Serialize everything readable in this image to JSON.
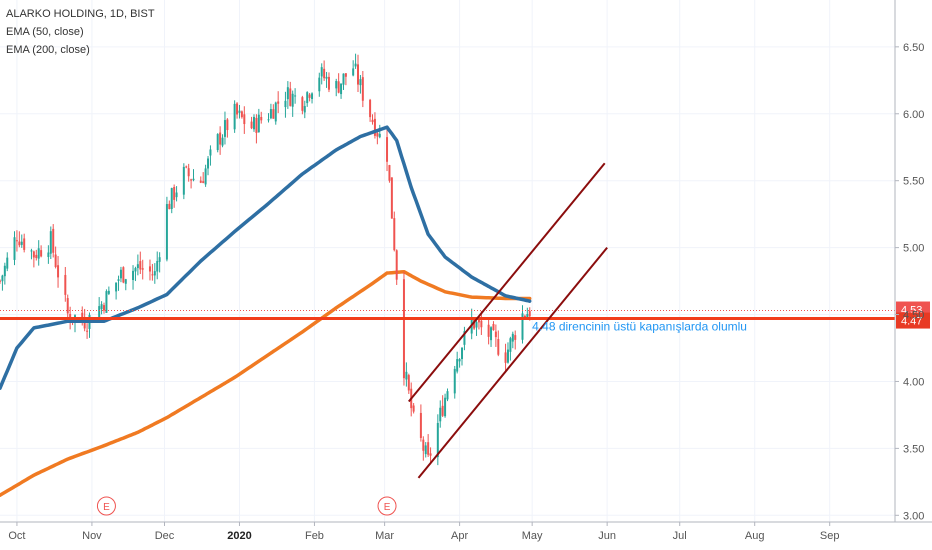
{
  "legend": {
    "title": "ALARKO HOLDING, 1D, BIST",
    "ema50": "EMA (50, close)",
    "ema200": "EMA (200, close)"
  },
  "colors": {
    "up": "#26a69a",
    "down": "#ef5350",
    "ema50": "#2e6fa3",
    "ema200": "#f07a22",
    "channel": "#8b0d0d",
    "resistance": "#f23c1a",
    "annotation": "#2196f3",
    "price_tag_upper": "#ef5350",
    "price_tag_lower": "#e83a23"
  },
  "chart_data": {
    "type": "candlestick",
    "symbol": "ALARKO HOLDING",
    "interval": "1D",
    "exchange": "BIST",
    "ylim": [
      2.95,
      6.85
    ],
    "y_ticks": [
      3.0,
      3.5,
      4.0,
      4.5,
      5.0,
      5.5,
      6.0,
      6.5
    ],
    "y_tick_labels": [
      "3.00",
      "3.50",
      "4.00",
      "4.50",
      "5.00",
      "5.50",
      "6.00",
      "6.50"
    ],
    "x_labels": [
      {
        "label": "Oct",
        "date": "2019-10-01",
        "bold": false
      },
      {
        "label": "Nov",
        "date": "2019-11-01",
        "bold": false
      },
      {
        "label": "Dec",
        "date": "2019-12-01",
        "bold": false
      },
      {
        "label": "2020",
        "date": "2020-01-01",
        "bold": true
      },
      {
        "label": "Feb",
        "date": "2020-02-01",
        "bold": false
      },
      {
        "label": "Mar",
        "date": "2020-03-01",
        "bold": false
      },
      {
        "label": "Apr",
        "date": "2020-04-01",
        "bold": false
      },
      {
        "label": "May",
        "date": "2020-05-01",
        "bold": false
      },
      {
        "label": "Jun",
        "date": "2020-06-01",
        "bold": false
      },
      {
        "label": "Jul",
        "date": "2020-07-01",
        "bold": false
      },
      {
        "label": "Aug",
        "date": "2020-08-01",
        "bold": false
      },
      {
        "label": "Sep",
        "date": "2020-09-01",
        "bold": false
      }
    ],
    "x_range": [
      "2019-09-24",
      "2020-09-28"
    ],
    "close_keypoints": [
      [
        "2019-09-24",
        4.75
      ],
      [
        "2019-10-01",
        5.1
      ],
      [
        "2019-10-08",
        4.95
      ],
      [
        "2019-10-15",
        5.05
      ],
      [
        "2019-10-22",
        4.5
      ],
      [
        "2019-10-30",
        4.45
      ],
      [
        "2019-11-06",
        4.6
      ],
      [
        "2019-11-13",
        4.8
      ],
      [
        "2019-11-20",
        4.85
      ],
      [
        "2019-11-27",
        4.8
      ],
      [
        "2019-12-02",
        5.3
      ],
      [
        "2019-12-09",
        5.55
      ],
      [
        "2019-12-16",
        5.5
      ],
      [
        "2019-12-23",
        5.8
      ],
      [
        "2019-12-30",
        6.0
      ],
      [
        "2020-01-06",
        5.9
      ],
      [
        "2020-01-13",
        6.0
      ],
      [
        "2020-01-20",
        6.15
      ],
      [
        "2020-01-27",
        6.1
      ],
      [
        "2020-02-03",
        6.3
      ],
      [
        "2020-02-10",
        6.2
      ],
      [
        "2020-02-17",
        6.35
      ],
      [
        "2020-02-24",
        6.0
      ],
      [
        "2020-03-02",
        5.7
      ],
      [
        "2020-03-06",
        4.8
      ],
      [
        "2020-03-09",
        4.1
      ],
      [
        "2020-03-13",
        3.7
      ],
      [
        "2020-03-19",
        3.4
      ],
      [
        "2020-03-24",
        3.75
      ],
      [
        "2020-03-30",
        4.15
      ],
      [
        "2020-04-06",
        4.45
      ],
      [
        "2020-04-13",
        4.35
      ],
      [
        "2020-04-20",
        4.2
      ],
      [
        "2020-04-27",
        4.5
      ],
      [
        "2020-04-30",
        4.53
      ]
    ],
    "series": [
      {
        "name": "EMA (50, close)",
        "points": [
          [
            "2019-09-24",
            3.95
          ],
          [
            "2019-10-01",
            4.25
          ],
          [
            "2019-10-08",
            4.4
          ],
          [
            "2019-10-22",
            4.45
          ],
          [
            "2019-11-06",
            4.45
          ],
          [
            "2019-11-20",
            4.55
          ],
          [
            "2019-12-02",
            4.65
          ],
          [
            "2019-12-16",
            4.9
          ],
          [
            "2019-12-30",
            5.12
          ],
          [
            "2020-01-13",
            5.33
          ],
          [
            "2020-01-27",
            5.55
          ],
          [
            "2020-02-10",
            5.73
          ],
          [
            "2020-02-20",
            5.83
          ],
          [
            "2020-03-02",
            5.9
          ],
          [
            "2020-03-06",
            5.8
          ],
          [
            "2020-03-12",
            5.45
          ],
          [
            "2020-03-19",
            5.1
          ],
          [
            "2020-03-26",
            4.93
          ],
          [
            "2020-04-06",
            4.78
          ],
          [
            "2020-04-20",
            4.64
          ],
          [
            "2020-04-30",
            4.6
          ]
        ]
      },
      {
        "name": "EMA (200, close)",
        "points": [
          [
            "2019-09-24",
            3.15
          ],
          [
            "2019-10-08",
            3.3
          ],
          [
            "2019-10-22",
            3.42
          ],
          [
            "2019-11-06",
            3.52
          ],
          [
            "2019-11-20",
            3.62
          ],
          [
            "2019-12-02",
            3.73
          ],
          [
            "2019-12-16",
            3.88
          ],
          [
            "2019-12-30",
            4.03
          ],
          [
            "2020-01-13",
            4.2
          ],
          [
            "2020-01-27",
            4.37
          ],
          [
            "2020-02-10",
            4.55
          ],
          [
            "2020-02-24",
            4.72
          ],
          [
            "2020-03-02",
            4.81
          ],
          [
            "2020-03-09",
            4.82
          ],
          [
            "2020-03-16",
            4.75
          ],
          [
            "2020-03-26",
            4.67
          ],
          [
            "2020-04-06",
            4.63
          ],
          [
            "2020-04-20",
            4.62
          ],
          [
            "2020-04-30",
            4.62
          ]
        ]
      }
    ],
    "horizontal_lines": [
      {
        "value": 4.53,
        "style": "dotted",
        "tag": "4.53"
      },
      {
        "value": 4.47,
        "style": "solid-thick",
        "tag": "4.47"
      }
    ],
    "channel": [
      {
        "from": [
          "2020-03-11",
          3.85
        ],
        "to": [
          "2020-05-31",
          5.63
        ]
      },
      {
        "from": [
          "2020-03-15",
          3.28
        ],
        "to": [
          "2020-06-01",
          5.0
        ]
      }
    ],
    "annotations": [
      {
        "text": "4.48 direncinin üstü kapanışlarda olumlu",
        "date": "2020-05-01",
        "value": 4.38
      }
    ],
    "earnings_markers": [
      {
        "label": "E",
        "date": "2019-11-07"
      },
      {
        "label": "E",
        "date": "2020-03-02"
      }
    ]
  }
}
